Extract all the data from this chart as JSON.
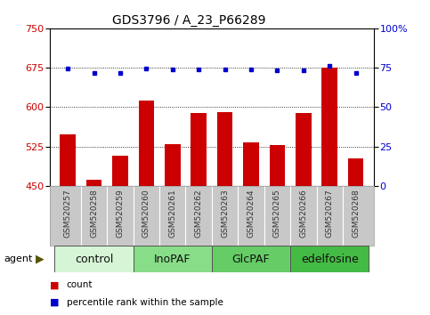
{
  "title": "GDS3796 / A_23_P66289",
  "samples": [
    "GSM520257",
    "GSM520258",
    "GSM520259",
    "GSM520260",
    "GSM520261",
    "GSM520262",
    "GSM520263",
    "GSM520264",
    "GSM520265",
    "GSM520266",
    "GSM520267",
    "GSM520268"
  ],
  "counts": [
    548,
    462,
    507,
    612,
    530,
    588,
    590,
    532,
    528,
    588,
    675,
    503
  ],
  "percentiles": [
    74.5,
    71.5,
    71.5,
    74.5,
    74,
    74,
    74,
    74,
    73.5,
    73.5,
    76,
    71.5
  ],
  "groups": [
    {
      "label": "control",
      "start": 0,
      "end": 3,
      "color": "#d6f5d6"
    },
    {
      "label": "InoPAF",
      "start": 3,
      "end": 6,
      "color": "#88dd88"
    },
    {
      "label": "GlcPAF",
      "start": 6,
      "end": 9,
      "color": "#66cc66"
    },
    {
      "label": "edelfosine",
      "start": 9,
      "end": 12,
      "color": "#44bb44"
    }
  ],
  "ylim_left": [
    450,
    750
  ],
  "ylim_right": [
    0,
    100
  ],
  "yticks_left": [
    450,
    525,
    600,
    675,
    750
  ],
  "yticks_right": [
    0,
    25,
    50,
    75,
    100
  ],
  "bar_color": "#cc0000",
  "dot_color": "#0000cc",
  "plot_bg_color": "#ffffff",
  "sample_bg_color": "#c8c8c8",
  "agent_label": "agent",
  "legend_count_label": "count",
  "legend_pct_label": "percentile rank within the sample",
  "right_axis_label_color": "#0000cc",
  "left_axis_label_color": "#cc0000",
  "title_fontsize": 10,
  "tick_fontsize": 8,
  "sample_fontsize": 6.5,
  "group_label_fontsize": 9
}
